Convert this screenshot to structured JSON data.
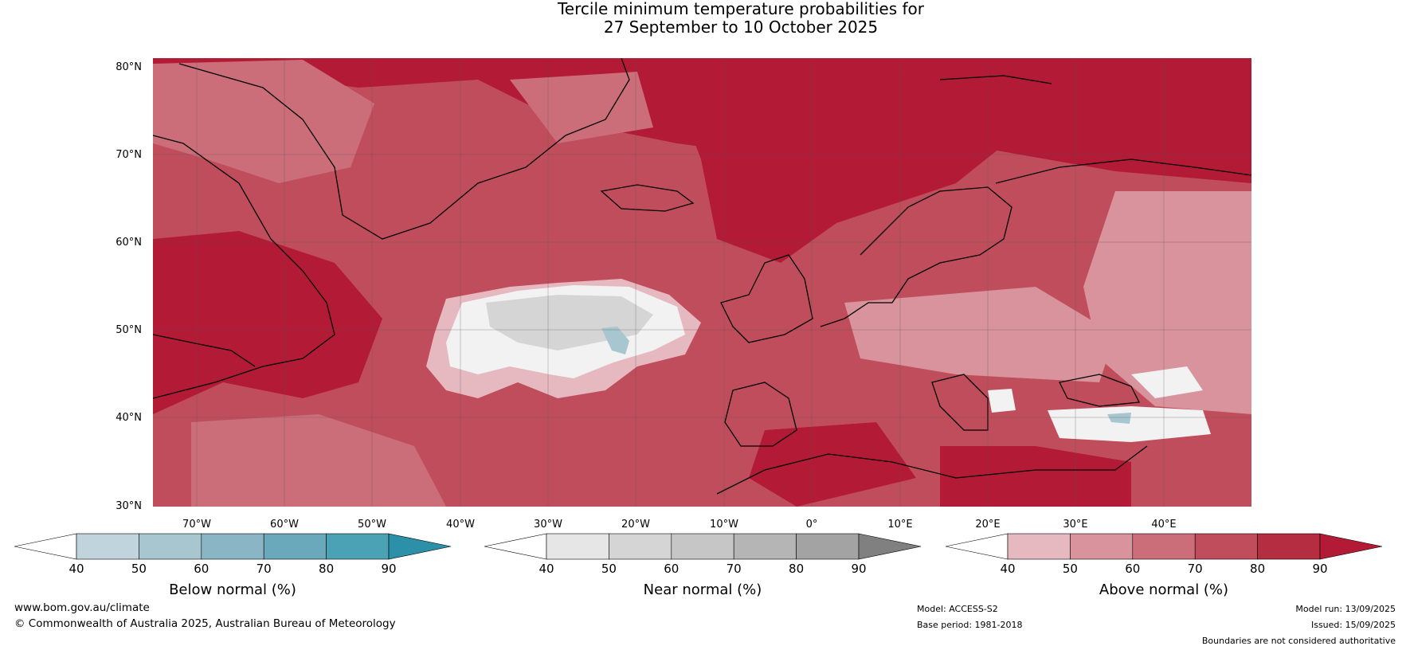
{
  "title_line1": "Tercile minimum temperature probabilities for",
  "title_line2": "27 September to 10 October 2025",
  "lat_labels": [
    "80°N",
    "70°N",
    "60°N",
    "50°N",
    "40°N",
    "30°N"
  ],
  "lon_labels": [
    "70°W",
    "60°W",
    "50°W",
    "40°W",
    "30°W",
    "20°W",
    "10°W",
    "0°",
    "10°E",
    "20°E",
    "30°E",
    "40°E"
  ],
  "colorbars": [
    {
      "label": "Below normal (%)",
      "ticks": [
        "40",
        "50",
        "60",
        "70",
        "80",
        "90"
      ],
      "colors": [
        "#ffffff",
        "#bfd4dc",
        "#a8c6cf",
        "#8ab5c4",
        "#6aa9bb",
        "#4aa2b4",
        "#2b90a8"
      ]
    },
    {
      "label": "Near normal (%)",
      "ticks": [
        "40",
        "50",
        "60",
        "70",
        "80",
        "90"
      ],
      "colors": [
        "#ffffff",
        "#e6e6e6",
        "#d5d5d5",
        "#c6c6c6",
        "#b5b5b5",
        "#a3a3a3",
        "#808080"
      ]
    },
    {
      "label": "Above normal (%)",
      "ticks": [
        "40",
        "50",
        "60",
        "70",
        "80",
        "90"
      ],
      "colors": [
        "#ffffff",
        "#e6b8bf",
        "#d9939c",
        "#cc6e7a",
        "#c04d5c",
        "#b52d40",
        "#b31a35"
      ]
    }
  ],
  "footer": {
    "website": "www.bom.gov.au/climate",
    "copyright": "© Commonwealth of Australia 2025, Australian Bureau of Meteorology",
    "model": "Model: ACCESS-S2",
    "base_period": "Base period: 1981-2018",
    "model_run": "Model run: 13/09/2025",
    "issued": "Issued: 15/09/2025",
    "disclaimer": "Boundaries are not considered authoritative"
  },
  "colors": {
    "above_dark": "#b31a35",
    "above_mid": "#c04d5c",
    "above_light": "#cc6e7a",
    "near_light": "#e6e6e6",
    "below_light": "#a8c6cf"
  }
}
